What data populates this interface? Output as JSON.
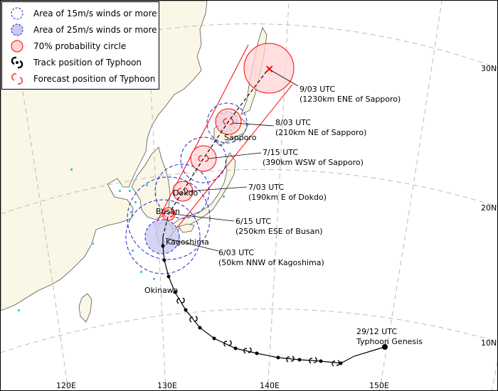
{
  "legend": {
    "items": [
      {
        "label": "Area of 15m/s winds or more",
        "icon": "dashed-circle-icon"
      },
      {
        "label": "Area of 25m/s winds or more",
        "icon": "filled-blue-circle-icon"
      },
      {
        "label": "70% probability circle",
        "icon": "red-circle-icon"
      },
      {
        "label": "Track position of Typhoon",
        "icon": "typhoon-track-icon"
      },
      {
        "label": "Forecast position of Typhoon",
        "icon": "typhoon-forecast-icon"
      }
    ]
  },
  "forecast_labels": [
    {
      "time": "9/03 UTC",
      "position": "(1230km ENE of Sapporo)"
    },
    {
      "time": "8/03 UTC",
      "position": "(210km NE of Sapporo)"
    },
    {
      "time": "7/15 UTC",
      "position": "(390km WSW of Sapporo)"
    },
    {
      "time": "7/03 UTC",
      "position": "(190km E of Dokdo)"
    },
    {
      "time": "6/15 UTC",
      "position": "(250km ESE of Busan)"
    },
    {
      "time": "6/03 UTC",
      "position": "(50km NNW of Kagoshima)"
    }
  ],
  "genesis": {
    "time": "29/12 UTC",
    "label": "Typhoon Genesis"
  },
  "cities": [
    "Sapporo",
    "Dokdo",
    "Busan",
    "Kagoshima",
    "Okinawa"
  ],
  "latitude_labels": [
    "30N",
    "20N",
    "10N"
  ],
  "longitude_labels": [
    "120E",
    "130E",
    "140E",
    "150E"
  ],
  "colors": {
    "ocean": "#ffffff",
    "land": "#faf7e6",
    "track": "#000000",
    "wind15": "#2222cc",
    "wind25_fill": "#c9c9f2",
    "prob_circle_stroke": "#ff0000",
    "prob_circle_fill": "#ffd4d4",
    "grid": "#bbbbbb"
  }
}
